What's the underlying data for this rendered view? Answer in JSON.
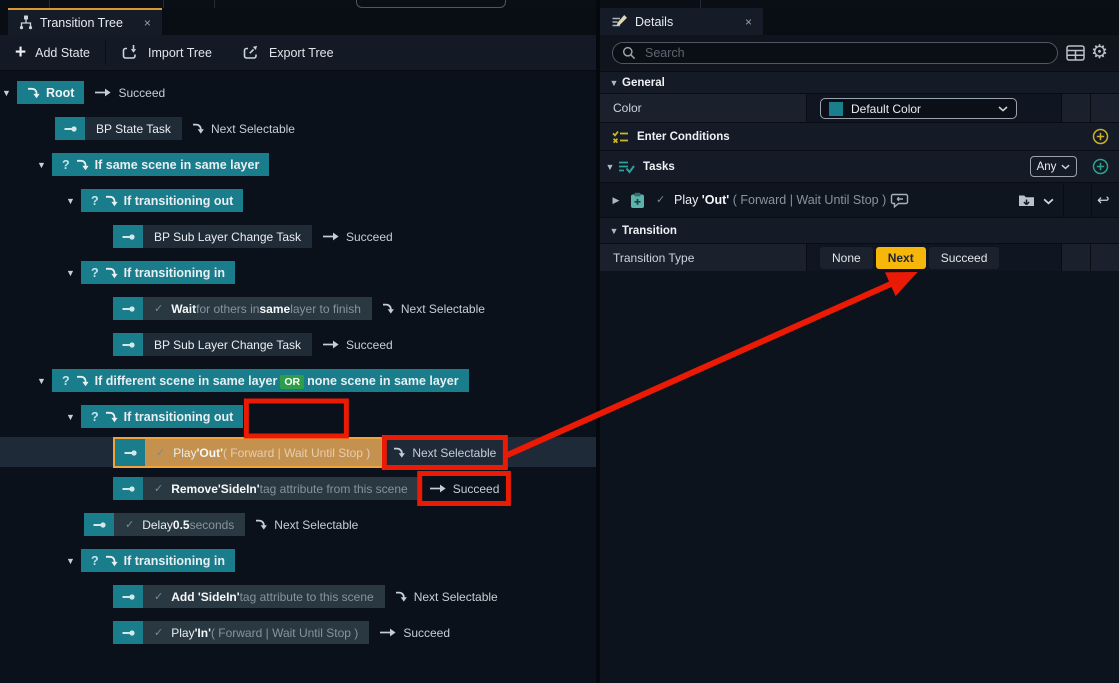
{
  "icons": {
    "collapse": "▼",
    "expand": "▶",
    "close": "×",
    "check": "✓",
    "undo": "↩",
    "gear": "⚙",
    "plus": "+"
  },
  "left_panel": {
    "tab": {
      "title": "Transition Tree",
      "close": "×"
    },
    "toolbar": {
      "add_state": "Add State",
      "import_tree": "Import Tree",
      "export_tree": "Export Tree"
    },
    "tree_rows": [
      {
        "kind": "root",
        "depth": 0,
        "title": "Root",
        "transition": {
          "type": "succeed",
          "label": "Succeed"
        }
      },
      {
        "kind": "task",
        "depth": 1,
        "label": [
          {
            "t": "BP State Task",
            "s": "w"
          }
        ],
        "transition": {
          "type": "next",
          "label": "Next Selectable"
        }
      },
      {
        "kind": "group",
        "depth": 1,
        "title": [
          {
            "t": "If same scene in same layer"
          }
        ]
      },
      {
        "kind": "group",
        "depth": 2,
        "title": [
          {
            "t": "If transitioning out"
          }
        ]
      },
      {
        "kind": "task",
        "depth": 3,
        "label": [
          {
            "t": "BP Sub Layer Change Task",
            "s": "w"
          }
        ],
        "transition": {
          "type": "succeed",
          "label": "Succeed"
        }
      },
      {
        "kind": "group",
        "depth": 2,
        "title": [
          {
            "t": "If transitioning in"
          }
        ]
      },
      {
        "kind": "task",
        "depth": 3,
        "check": true,
        "label": [
          {
            "t": "Wait",
            "s": "b"
          },
          {
            "t": " for others in ",
            "s": "d"
          },
          {
            "t": "same",
            "s": "b"
          },
          {
            "t": " layer to finish",
            "s": "d"
          }
        ],
        "transition": {
          "type": "next",
          "label": "Next Selectable"
        }
      },
      {
        "kind": "task",
        "depth": 3,
        "label": [
          {
            "t": "BP Sub Layer Change Task",
            "s": "w"
          }
        ],
        "transition": {
          "type": "succeed",
          "label": "Succeed"
        }
      },
      {
        "kind": "group",
        "depth": 1,
        "title": [
          {
            "t": "If different scene in same layer"
          },
          {
            "badge": "OR"
          },
          {
            "t": "none scene in same layer"
          }
        ]
      },
      {
        "kind": "group",
        "depth": 2,
        "title": [
          {
            "t": "If transitioning out"
          }
        ],
        "annotate": "after-box"
      },
      {
        "kind": "task",
        "depth": 3,
        "check": true,
        "selected": true,
        "label": [
          {
            "t": "Play ",
            "s": "w"
          },
          {
            "t": "'Out'",
            "s": "b"
          },
          {
            "t": " ( Forward | Wait Until Stop )",
            "s": "d"
          }
        ],
        "transition": {
          "type": "next",
          "label": "Next Selectable",
          "annotate": true
        }
      },
      {
        "kind": "task",
        "depth": 3,
        "check": true,
        "label": [
          {
            "t": "Remove'SideIn'",
            "s": "b"
          },
          {
            "t": " tag attribute from this scene",
            "s": "d"
          }
        ],
        "transition": {
          "type": "succeed",
          "label": "Succeed",
          "annotate": true
        }
      },
      {
        "kind": "task",
        "depth": 2,
        "check": true,
        "label": [
          {
            "t": "Delay ",
            "s": "w"
          },
          {
            "t": "0.5",
            "s": "b"
          },
          {
            "t": " seconds",
            "s": "d"
          }
        ],
        "transition": {
          "type": "next",
          "label": "Next Selectable"
        }
      },
      {
        "kind": "group",
        "depth": 2,
        "title": [
          {
            "t": "If transitioning in"
          }
        ]
      },
      {
        "kind": "task",
        "depth": 3,
        "check": true,
        "label": [
          {
            "t": "Add 'SideIn'",
            "s": "b"
          },
          {
            "t": " tag attribute to this scene",
            "s": "d"
          }
        ],
        "transition": {
          "type": "next",
          "label": "Next Selectable"
        }
      },
      {
        "kind": "task",
        "depth": 3,
        "check": true,
        "label": [
          {
            "t": "Play ",
            "s": "w"
          },
          {
            "t": "'In'",
            "s": "b"
          },
          {
            "t": " ( Forward | Wait Until Stop )",
            "s": "d"
          }
        ],
        "transition": {
          "type": "succeed",
          "label": "Succeed"
        }
      }
    ]
  },
  "right_panel": {
    "tab": {
      "title": "Details",
      "close": "×"
    },
    "search": {
      "placeholder": "Search"
    },
    "general": {
      "header": "General",
      "color_label": "Color",
      "color_value": "Default Color"
    },
    "enter_conditions": {
      "header": "Enter Conditions"
    },
    "tasks": {
      "header": "Tasks",
      "mode": "Any",
      "task": {
        "segments": [
          {
            "t": "Play ",
            "s": "w"
          },
          {
            "t": "'Out'",
            "s": "b"
          },
          {
            "t": " ( Forward | Wait Until Stop ) ",
            "s": "d"
          }
        ]
      }
    },
    "transition": {
      "header": "Transition",
      "type_label": "Transition Type",
      "options": [
        "None",
        "Next",
        "Succeed"
      ],
      "selected": "Next"
    }
  },
  "annotations": {
    "color": "#ea1a04",
    "boxes": [
      {
        "target": "row9-after-box"
      },
      {
        "target": "row10-transition"
      },
      {
        "target": "row11-transition"
      }
    ],
    "arrow": {
      "from": "row10-transition",
      "to": "transition-type-next"
    }
  },
  "theme": {
    "teal": "#1a7d8c",
    "selected_orange": "#c5914f",
    "selected_border": "#f1a33a",
    "next_button_yellow": "#f6b70a",
    "or_badge_green": "#2e9e49",
    "tab_accent_orange": "#d79a33"
  }
}
